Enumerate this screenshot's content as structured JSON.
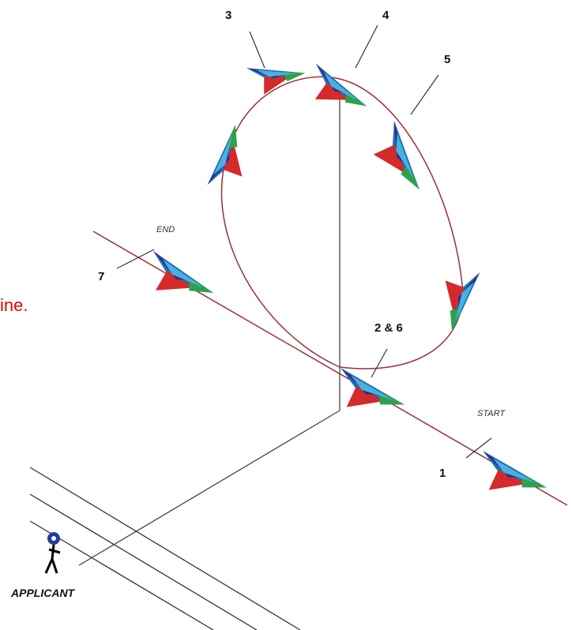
{
  "positions": [
    "3",
    "4",
    "5",
    "7",
    "2 & 6",
    "1"
  ],
  "markers": {
    "end": "END",
    "start": "START"
  },
  "applicant": "APPLICANT",
  "side_text": "ine."
}
